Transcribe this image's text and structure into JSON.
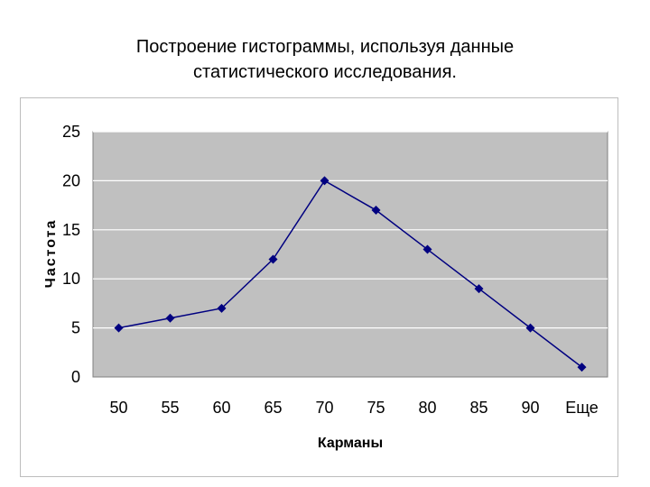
{
  "title_line1": "Построение гистограммы, используя данные",
  "title_line2": "статистического исследования.",
  "chart_data": {
    "type": "line",
    "categories": [
      "50",
      "55",
      "60",
      "65",
      "70",
      "75",
      "80",
      "85",
      "90",
      "Еще"
    ],
    "series": [
      {
        "values": [
          5,
          6,
          7,
          12,
          20,
          17,
          13,
          9,
          5,
          1
        ]
      }
    ],
    "xlabel": "Карманы",
    "ylabel": "Частота",
    "ylim": [
      0,
      25
    ],
    "yticks": [
      0,
      5,
      10,
      15,
      20,
      25
    ],
    "grid": true,
    "legend": "none",
    "colors": {
      "line": "#000080",
      "plot_background": "#c0c0c0",
      "grid": "#ffffff"
    }
  }
}
